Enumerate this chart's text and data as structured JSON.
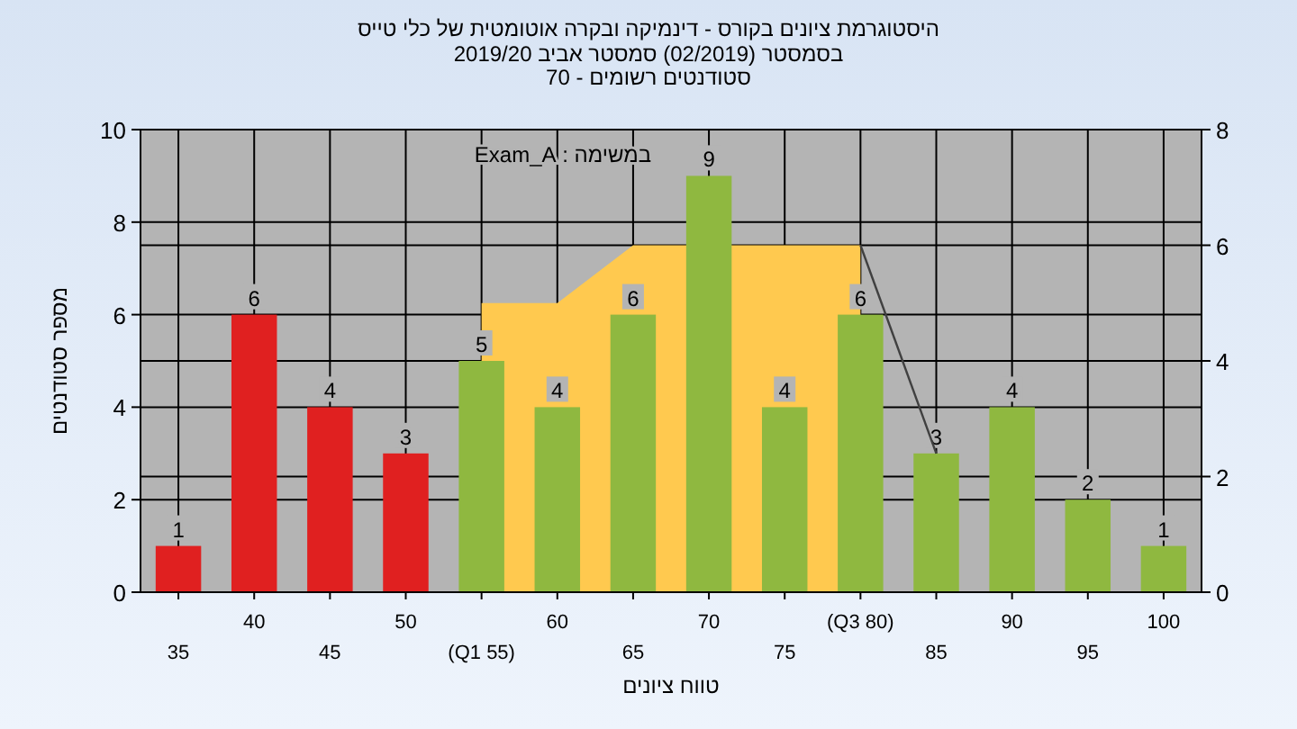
{
  "chart_data": {
    "type": "bar",
    "title": "היסטוגרמת ציונים בקורס - דינמיקה ובקרה אוטומטית של כלי טייס",
    "subtitle": [
      "בסמסטר  (02/2019)  סמסטר אביב 2019/20",
      "סטודנטים רשומים - 70"
    ],
    "xlabel": "טווח ציונים",
    "ylabel": "מספר סטודנטים",
    "annotations": [
      "במשימה : Exam_A"
    ],
    "categories": [
      "35",
      "40",
      "45",
      "50",
      "(Q1 55)",
      "60",
      "65",
      "70",
      "75",
      "(Q3 80)",
      "85",
      "90",
      "95",
      "100"
    ],
    "series": [
      {
        "type": "area",
        "axis": "y2",
        "color": "#ffc94f",
        "values": [
          null,
          null,
          null,
          null,
          5,
          5,
          6,
          null,
          6,
          6,
          null,
          null,
          null,
          null
        ]
      },
      {
        "type": "line",
        "axis": "y2",
        "color": "#404040",
        "values": [
          null,
          null,
          null,
          null,
          null,
          null,
          null,
          null,
          null,
          6,
          2.4,
          null,
          null,
          null
        ]
      },
      {
        "colors": [
          "#e02020",
          "#e02020",
          "#e02020",
          "#e02020",
          "#8fb840",
          "#8fb840",
          "#8fb840",
          "#8fb840",
          "#8fb840",
          "#8fb840",
          "#8fb840",
          "#8fb840",
          "#8fb840",
          "#8fb840"
        ],
        "values": [
          1,
          6,
          4,
          3,
          5,
          4,
          6,
          9,
          4,
          6,
          3,
          4,
          2,
          1
        ],
        "value_labels": [
          "1",
          "6",
          "4",
          "3",
          "5",
          "4",
          "6",
          "9",
          "4",
          "6",
          "3",
          "4",
          "2",
          "1"
        ]
      }
    ],
    "ylim": [
      0,
      10
    ],
    "yticks": [
      0,
      2,
      4,
      6,
      8,
      10
    ],
    "y2lim": [
      0,
      8
    ],
    "y2ticks": [
      0,
      2,
      4,
      6,
      8
    ],
    "grid": true
  }
}
